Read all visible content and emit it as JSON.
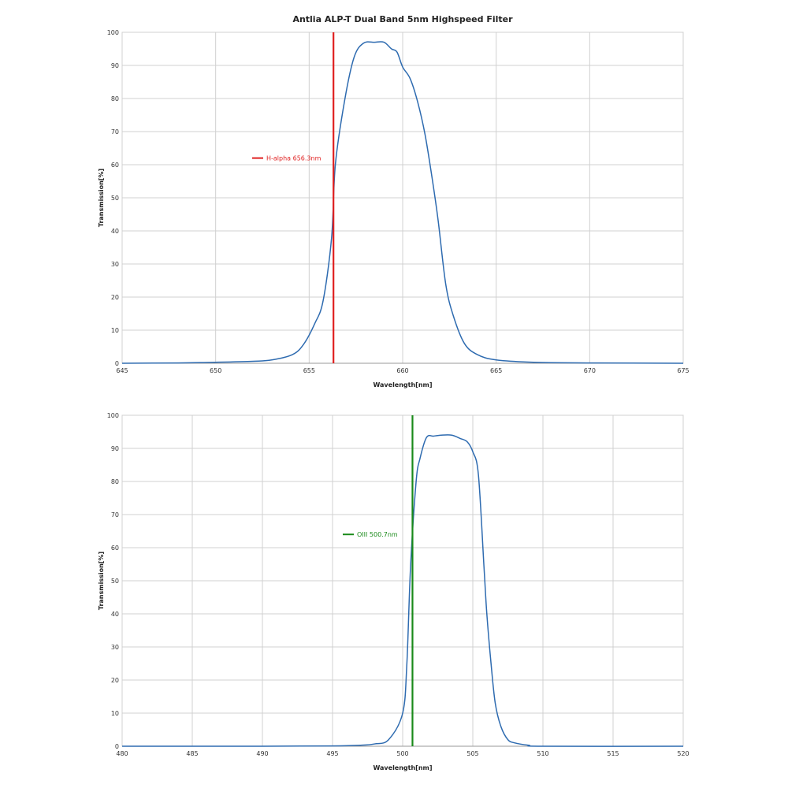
{
  "chart_data": [
    {
      "type": "line",
      "title": "Antlia ALP-T Dual Band 5nm Highspeed Filter",
      "xlabel": "Wavelength[nm]",
      "ylabel": "Transmission[%]",
      "xlim": [
        645,
        675
      ],
      "ylim": [
        0,
        100
      ],
      "xticks": [
        645,
        650,
        655,
        660,
        665,
        670,
        675
      ],
      "yticks": [
        0,
        10,
        20,
        30,
        40,
        50,
        60,
        70,
        80,
        90,
        100
      ],
      "grid": true,
      "curve_color": "#2e6bb0",
      "x": [
        645,
        648,
        650,
        652,
        653,
        654.1,
        654.7,
        655.3,
        655.75,
        656.2,
        656.4,
        656.9,
        657.4,
        657.9,
        658.5,
        659.0,
        659.4,
        659.7,
        660.0,
        660.4,
        660.8,
        661.2,
        661.6,
        661.9,
        662.3,
        662.7,
        663.3,
        664.0,
        665,
        667,
        670,
        675
      ],
      "y": [
        0,
        0.1,
        0.3,
        0.6,
        1,
        2.6,
        5.7,
        12,
        19,
        38,
        60,
        79.5,
        92.4,
        96.7,
        97,
        97,
        95,
        94,
        89.5,
        86,
        79,
        69,
        55,
        43,
        24,
        14.5,
        6,
        2.6,
        1,
        0.3,
        0.1,
        0
      ],
      "marker": {
        "label": "H-alpha 656.3nm",
        "x": 656.3,
        "color": "#e02020"
      }
    },
    {
      "type": "line",
      "title": "",
      "xlabel": "Wavelength[nm]",
      "ylabel": "Transmission[%]",
      "xlim": [
        480,
        520
      ],
      "ylim": [
        0,
        100
      ],
      "xticks": [
        480,
        485,
        490,
        495,
        500,
        505,
        510,
        515,
        520
      ],
      "yticks": [
        0,
        10,
        20,
        30,
        40,
        50,
        60,
        70,
        80,
        90,
        100
      ],
      "grid": true,
      "curve_color": "#2e6bb0",
      "x": [
        480,
        490,
        495,
        497,
        498,
        499,
        500,
        500.3,
        500.56,
        500.96,
        501.24,
        501.7,
        502.2,
        502.75,
        503.5,
        504.1,
        504.6,
        505.0,
        505.4,
        505.8,
        506.0,
        506.3,
        506.6,
        507.0,
        507.5,
        508,
        509,
        510,
        520
      ],
      "y": [
        0,
        0,
        0.1,
        0.3,
        0.7,
        2,
        10,
        25,
        54,
        80,
        87,
        93.3,
        93.7,
        94,
        94,
        93,
        92,
        89,
        82,
        54,
        40,
        25,
        13,
        6,
        2,
        1,
        0.3,
        0,
        0
      ],
      "marker": {
        "label": "OIII 500.7nm",
        "x": 500.7,
        "color": "#1a8a1a"
      }
    }
  ]
}
